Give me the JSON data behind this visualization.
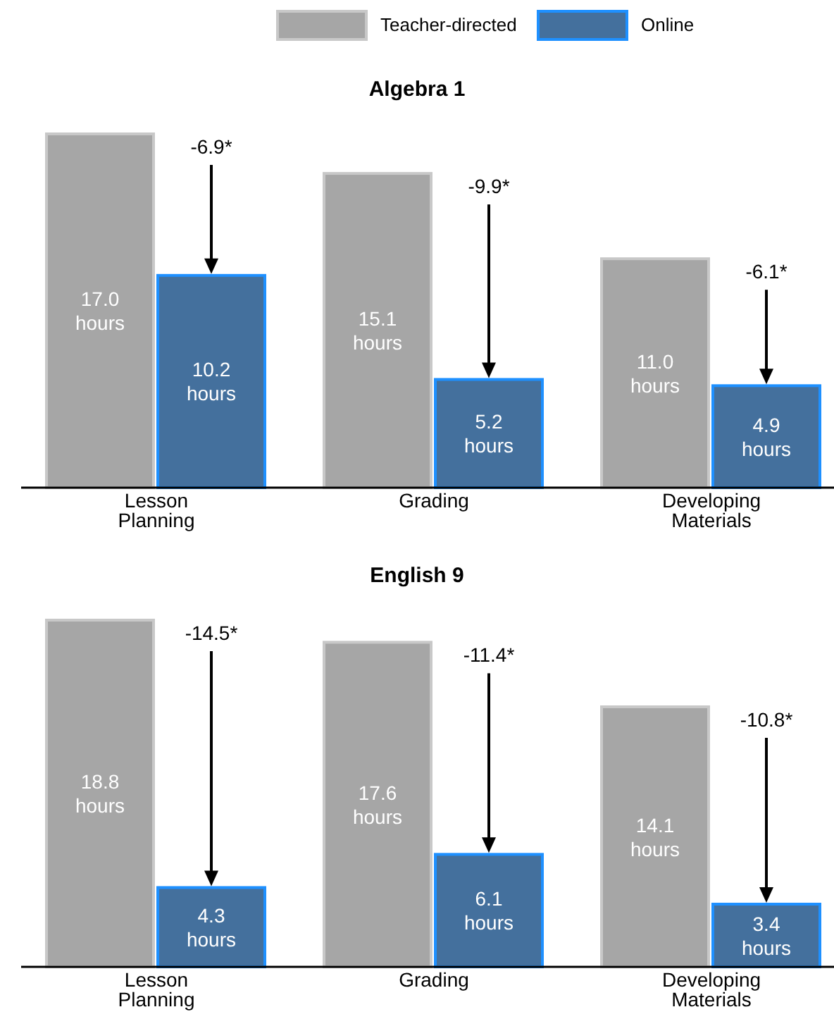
{
  "chart_data": [
    {
      "type": "bar",
      "title": "Algebra 1",
      "categories": [
        "Lesson Planning",
        "Grading",
        "Developing Materials"
      ],
      "legend": "top",
      "series": [
        {
          "name": "Teacher-directed",
          "color": "#a6a6a6",
          "values": [
            17.0,
            15.1,
            11.0
          ],
          "value_labels": [
            "17.0 hours",
            "15.1 hours",
            "11.0 hours"
          ]
        },
        {
          "name": "Online",
          "color": "#44709d",
          "values": [
            10.2,
            5.2,
            4.9
          ],
          "value_labels": [
            "10.2 hours",
            "5.2 hours",
            "4.9 hours"
          ]
        }
      ],
      "annotations": [
        "-6.9*",
        "-9.9*",
        "-6.1*"
      ]
    },
    {
      "type": "bar",
      "title": "English 9",
      "categories": [
        "Lesson Planning",
        "Grading",
        "Developing Materials"
      ],
      "series": [
        {
          "color": "#a6a6a6",
          "values": [
            18.8,
            17.6,
            14.1
          ],
          "value_labels": [
            "18.8 hours",
            "17.6 hours",
            "14.1 hours"
          ]
        },
        {
          "color": "#44709d",
          "values": [
            4.3,
            6.1,
            3.4
          ],
          "value_labels": [
            "4.3 hours",
            "6.1 hours",
            "3.4 hours"
          ]
        }
      ],
      "annotations": [
        "-14.5*",
        "-11.4*",
        "-10.8*"
      ]
    }
  ]
}
